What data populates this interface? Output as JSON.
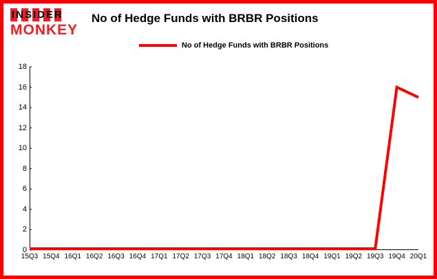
{
  "brand": {
    "line1": "INSIDER",
    "line2": "MONKEY"
  },
  "header": {
    "title": "No of Hedge Funds with BRBR Positions"
  },
  "legend": {
    "label": "No of Hedge Funds with BRBR Positions"
  },
  "colors": {
    "frame": "#fb0000",
    "line": "#ff0000",
    "logo_red": "#ee1c25",
    "axis": "#000000",
    "background": "#ffffff"
  },
  "chart_data": {
    "type": "line",
    "title": "No of Hedge Funds with BRBR Positions",
    "categories": [
      "15Q3",
      "15Q4",
      "16Q1",
      "16Q2",
      "16Q3",
      "16Q4",
      "17Q1",
      "17Q2",
      "17Q3",
      "17Q4",
      "18Q1",
      "18Q2",
      "18Q3",
      "18Q4",
      "19Q1",
      "19Q2",
      "19Q3",
      "19Q4",
      "20Q1"
    ],
    "series": [
      {
        "name": "No of Hedge Funds with BRBR Positions",
        "values": [
          0,
          0,
          0,
          0,
          0,
          0,
          0,
          0,
          0,
          0,
          0,
          0,
          0,
          0,
          0,
          0,
          0,
          16,
          15
        ]
      }
    ],
    "xlabel": "",
    "ylabel": "",
    "ylim": [
      0,
      18
    ],
    "y_ticks": [
      0,
      2,
      4,
      6,
      8,
      10,
      12,
      14,
      16,
      18
    ],
    "grid": false,
    "legend_position": "top-left"
  }
}
